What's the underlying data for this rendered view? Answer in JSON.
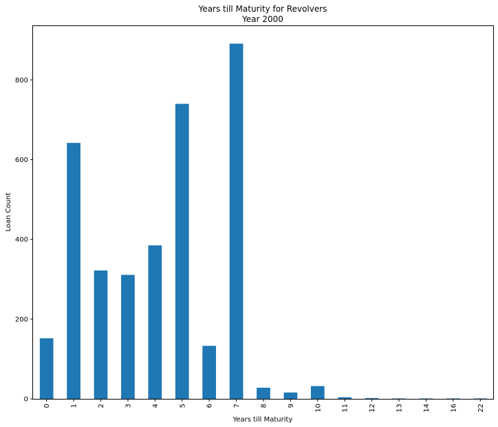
{
  "chart_data": {
    "type": "bar",
    "title": "Years till Maturity for Revolvers",
    "subtitle": "Year 2000",
    "xlabel": "Years till Maturity",
    "ylabel": "Loan Count",
    "categories": [
      "0",
      "1",
      "2",
      "3",
      "4",
      "5",
      "6",
      "7",
      "8",
      "9",
      "10",
      "11",
      "12",
      "13",
      "14",
      "16",
      "22"
    ],
    "values": [
      152,
      642,
      322,
      311,
      385,
      740,
      133,
      891,
      28,
      16,
      32,
      4,
      2,
      1,
      1,
      1,
      1
    ],
    "ylim": [
      0,
      935
    ],
    "yticks": [
      0,
      200,
      400,
      600,
      800
    ],
    "bar_color": "#1f77b4",
    "grid": false,
    "legend": false
  }
}
